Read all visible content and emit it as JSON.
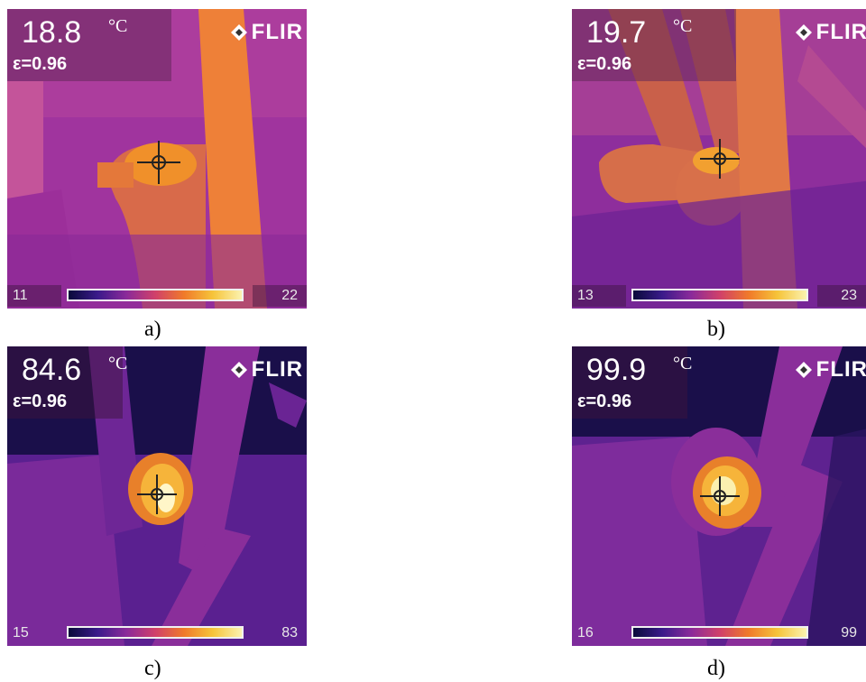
{
  "panels": [
    {
      "id": "a",
      "temperature": "18.8",
      "unit": "°C",
      "emissivity": "ε=0.96",
      "brand": "FLIR",
      "scale_min": "11",
      "scale_max": "22",
      "caption": "a)"
    },
    {
      "id": "b",
      "temperature": "19.7",
      "unit": "°C",
      "emissivity": "ε=0.96",
      "brand": "FLIR",
      "scale_min": "13",
      "scale_max": "23",
      "caption": "b)"
    },
    {
      "id": "c",
      "temperature": "84.6",
      "unit": "°C",
      "emissivity": "ε=0.96",
      "brand": "FLIR",
      "scale_min": "15",
      "scale_max": "83",
      "caption": "c)"
    },
    {
      "id": "d",
      "temperature": "99.9",
      "unit": "°C",
      "emissivity": "ε=0.96",
      "brand": "FLIR",
      "scale_min": "16",
      "scale_max": "99",
      "caption": "d)"
    }
  ],
  "palette": {
    "cold": "#1a0f4a",
    "mid": "#9a3aa8",
    "warm": "#e8702a",
    "hot": "#f8d040",
    "white": "#fff6c8"
  },
  "icons": {
    "crosshair": "crosshair-icon",
    "logo": "flir-diamond-icon"
  }
}
